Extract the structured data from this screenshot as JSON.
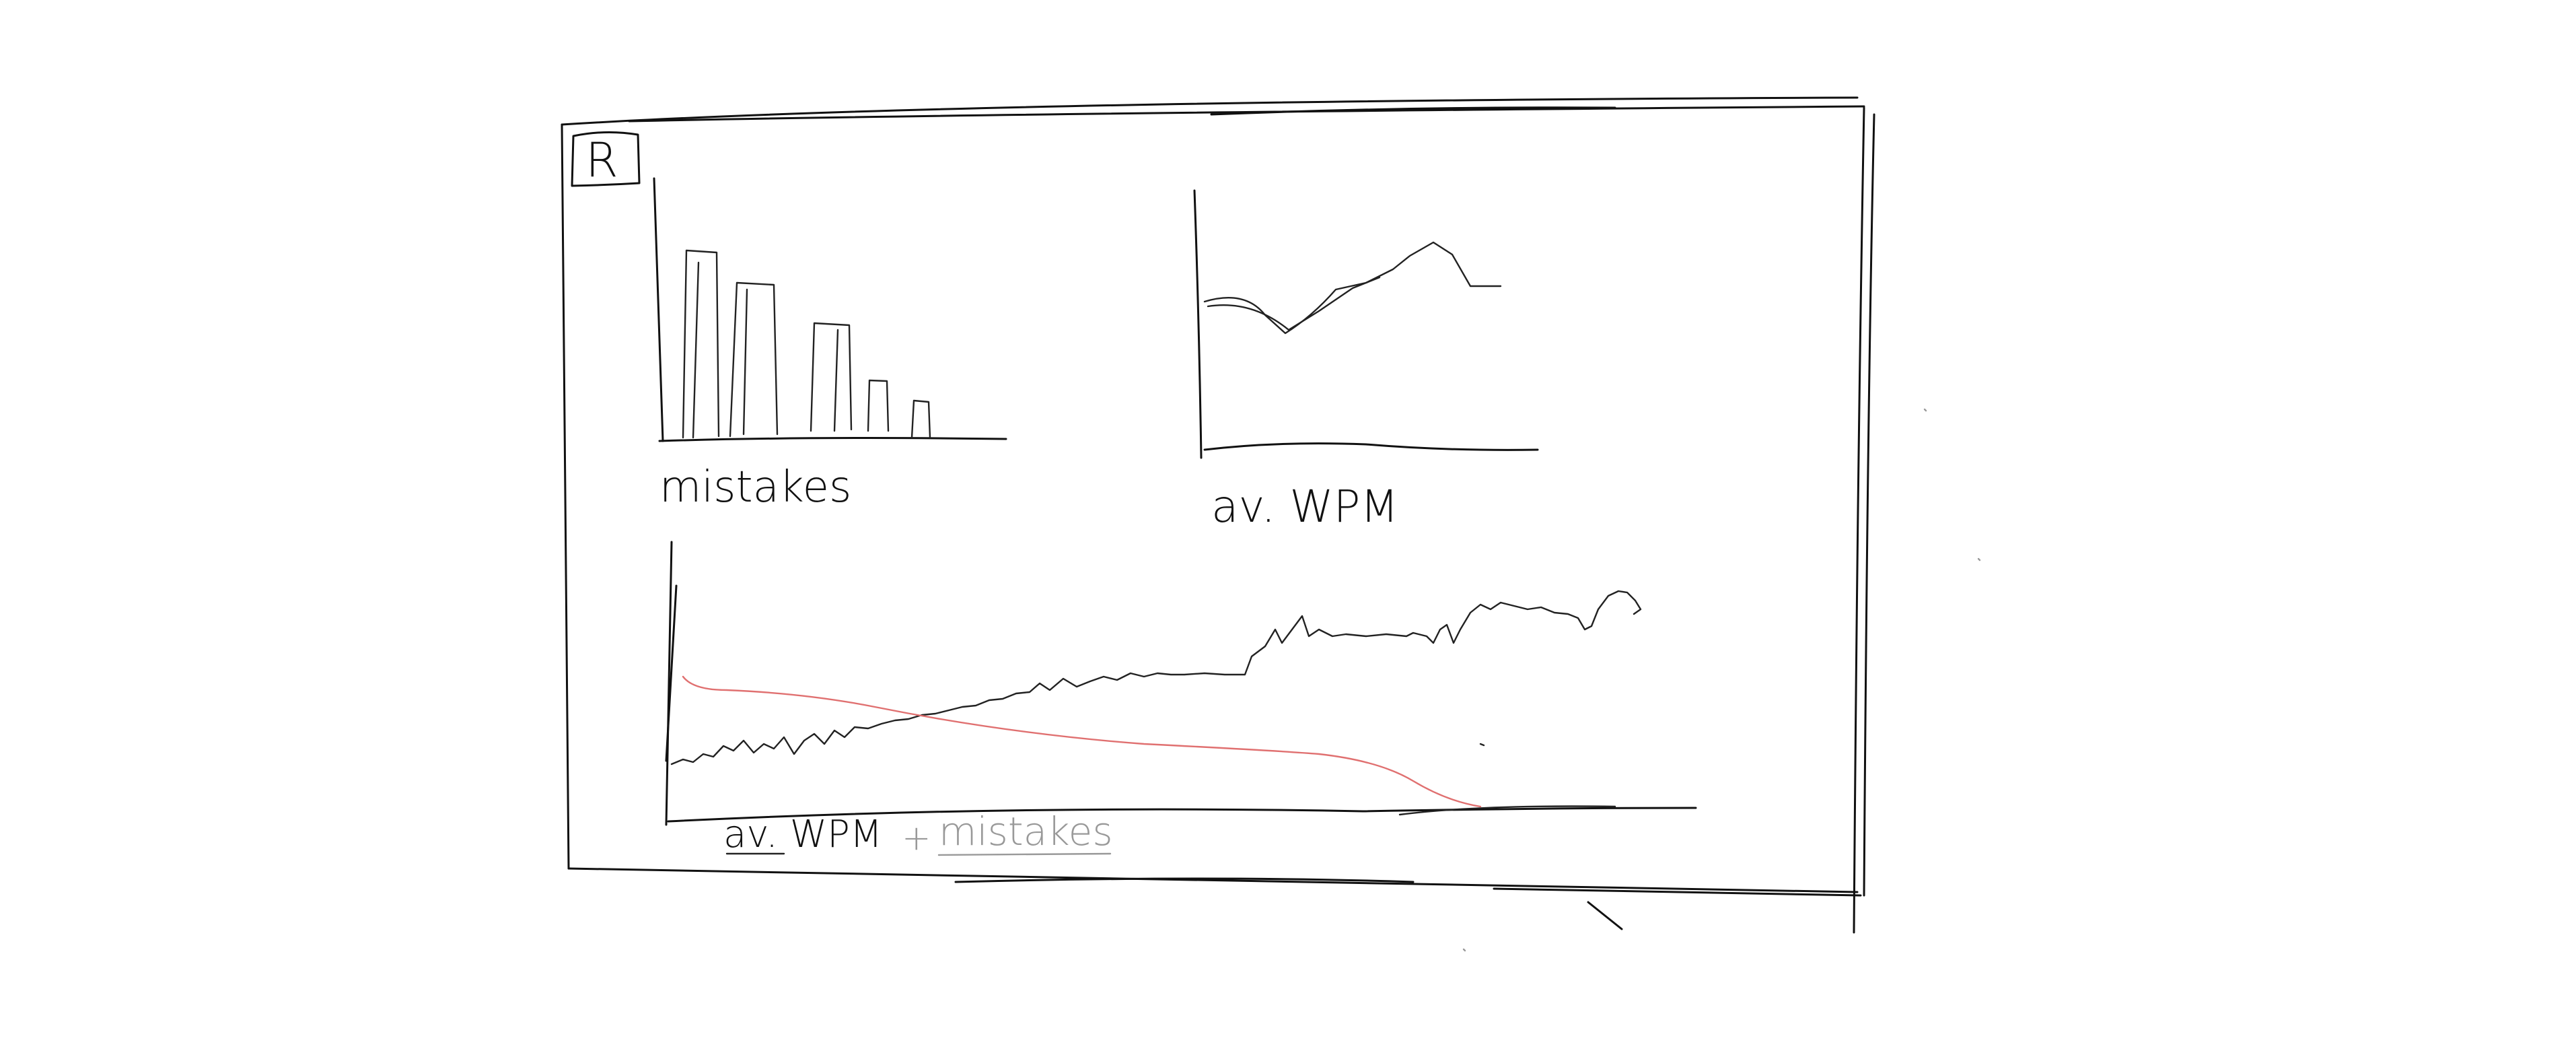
{
  "logo": {
    "letter": "R"
  },
  "charts": {
    "mistakes": {
      "label": "mistakes"
    },
    "avg_wpm": {
      "label": "av. WPM"
    },
    "combined": {
      "label_main": "av. WPM",
      "label_plus": "+",
      "label_secondary": "mistakes"
    }
  },
  "colors": {
    "ink": "#111111",
    "mistakes_line": "#e07070",
    "secondary_text": "#999999"
  }
}
